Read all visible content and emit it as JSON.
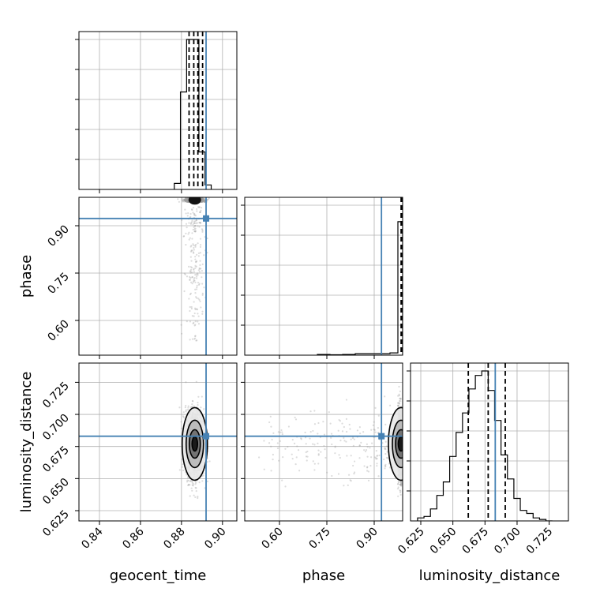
{
  "chart_data": {
    "type": "corner",
    "parameters": [
      "geocent_time",
      "phase",
      "luminosity_distance"
    ],
    "truth": {
      "geocent_time": 0.892,
      "phase": 0.923,
      "luminosity_distance": 0.683
    },
    "colors": {
      "truth": "#4682b4",
      "hist": "#000000",
      "grid": "#b0b0b0",
      "points": "#9a9a9a"
    },
    "grid": true,
    "ranges": {
      "geocent_time": [
        0.83,
        0.907
      ],
      "phase": [
        0.49,
        0.99
      ],
      "luminosity_distance": [
        0.617,
        0.74
      ]
    },
    "ticks": {
      "geocent_time": [
        "0.84",
        "0.86",
        "0.88",
        "0.90"
      ],
      "phase": [
        "0.60",
        "0.75",
        "0.90"
      ],
      "luminosity_distance": [
        "0.625",
        "0.650",
        "0.675",
        "0.700",
        "0.725"
      ]
    },
    "tick_values": {
      "geocent_time": [
        0.84,
        0.86,
        0.88,
        0.9
      ],
      "phase": [
        0.6,
        0.75,
        0.9
      ],
      "luminosity_distance": [
        0.625,
        0.65,
        0.675,
        0.7,
        0.725
      ]
    },
    "diag_hist": {
      "geocent_time": {
        "edges": [
          0.8765,
          0.8795,
          0.8825,
          0.8855,
          0.8885,
          0.8915,
          0.8945
        ],
        "counts": [
          0.04,
          0.65,
          1.0,
          1.0,
          0.25,
          0.03
        ],
        "quantiles": [
          0.8837,
          0.886,
          0.888,
          0.8903
        ]
      },
      "phase": {
        "edges": [
          0.72,
          0.76,
          0.8,
          0.84,
          0.88,
          0.92,
          0.95,
          0.975,
          0.99
        ],
        "counts": [
          0.005,
          0.003,
          0.005,
          0.01,
          0.01,
          0.01,
          0.015,
          0.89
        ],
        "quantiles": [
          0.9852,
          0.9885
        ]
      },
      "luminosity_distance": {
        "edges": [
          0.6225,
          0.6275,
          0.6325,
          0.6375,
          0.6425,
          0.6475,
          0.6525,
          0.6575,
          0.6625,
          0.6675,
          0.6725,
          0.6775,
          0.6825,
          0.6875,
          0.6925,
          0.6975,
          0.7025,
          0.7075,
          0.7125,
          0.7175,
          0.7225,
          0.7275
        ],
        "counts": [
          0.02,
          0.03,
          0.08,
          0.17,
          0.26,
          0.43,
          0.59,
          0.72,
          0.88,
          0.97,
          1.0,
          0.87,
          0.67,
          0.44,
          0.28,
          0.15,
          0.07,
          0.05,
          0.02,
          0.01,
          0.0
        ],
        "quantiles": [
          0.662,
          0.6775,
          0.6908
        ]
      }
    }
  }
}
